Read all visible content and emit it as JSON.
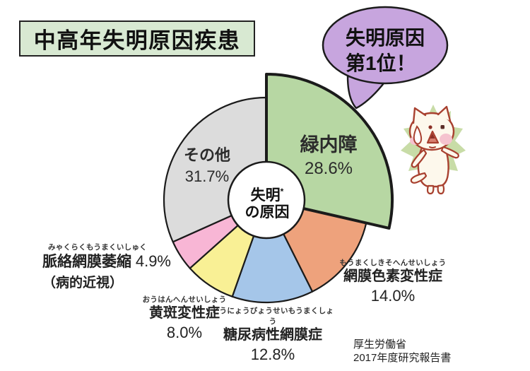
{
  "title": "中高年失明原因疾患",
  "speech_bubble": {
    "line1": "失明原因",
    "line2": "第1位！"
  },
  "center": {
    "line1": "失明",
    "mark": "*",
    "line2": "の原因"
  },
  "source": {
    "line1": "厚生労働省",
    "line2": "2017年度研究報告書"
  },
  "colors": {
    "outline": "#1b1b1b",
    "speech_bubble": "#c7a5de",
    "title_background": "#d8e9d2"
  },
  "chart_data": {
    "type": "pie",
    "title": "中高年失明原因疾患",
    "center_label": "失明の原因",
    "start_angle_deg": 0,
    "direction": "clockwise",
    "unit": "%",
    "segments": [
      {
        "label": "緑内障",
        "value": 28.6,
        "pct": "28.6%",
        "color": "#b7d7a3",
        "exploded": true
      },
      {
        "label": "網膜色素変性症",
        "furigana": "もうまくしきそへんせいしょう",
        "value": 14.0,
        "pct": "14.0%",
        "color": "#eea27c",
        "exploded": false
      },
      {
        "label": "糖尿病性網膜症",
        "furigana": "とうにょうびょうせいもうまくしょう",
        "value": 12.8,
        "pct": "12.8%",
        "color": "#a5c6e9",
        "exploded": false
      },
      {
        "label": "黄斑変性症",
        "furigana": "おうはんへんせいしょう",
        "value": 8.0,
        "pct": "8.0%",
        "color": "#f9f095",
        "exploded": false
      },
      {
        "label": "脈絡網膜萎縮",
        "furigana": "みゃくらくもうまくいしゅく",
        "sublabel": "（病的近視）",
        "value": 4.9,
        "pct": "4.9%",
        "color": "#f8b6d5",
        "exploded": false
      },
      {
        "label": "その他",
        "value": 31.7,
        "pct": "31.7%",
        "color": "#dcdcdc",
        "exploded": false
      }
    ]
  }
}
